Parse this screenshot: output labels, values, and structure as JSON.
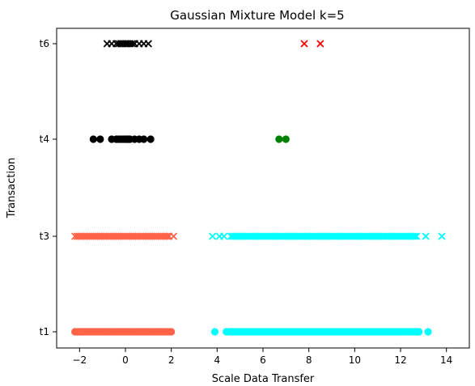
{
  "chart_data": {
    "type": "scatter",
    "title": "Gaussian Mixture Model k=5",
    "xlabel": "Scale Data Transfer",
    "ylabel": "Transaction",
    "xlim": [
      -3,
      15
    ],
    "x_ticks": [
      -2,
      0,
      2,
      4,
      6,
      8,
      10,
      12,
      14
    ],
    "categories": [
      "t1",
      "t3",
      "t4",
      "t6"
    ],
    "grid": false,
    "series": [
      {
        "category": "t6",
        "marker": "x",
        "color": "#000000",
        "x": [
          -0.8,
          -0.6,
          -0.4,
          -0.3,
          -0.2,
          -0.1,
          0.0,
          0.05,
          0.1,
          0.2,
          0.3,
          0.4,
          0.6,
          0.8,
          1.0
        ]
      },
      {
        "category": "t6",
        "marker": "x",
        "color": "#ff0000",
        "x": [
          7.8,
          8.5
        ]
      },
      {
        "category": "t4",
        "marker": "o",
        "color": "#000000",
        "x": [
          -1.4,
          -1.1,
          -0.6,
          -0.4,
          -0.3,
          -0.2,
          -0.1,
          0.0,
          0.05,
          0.1,
          0.15,
          0.2,
          0.4,
          0.6,
          0.8,
          1.1
        ]
      },
      {
        "category": "t4",
        "marker": "o",
        "color": "#008000",
        "x": [
          6.7,
          7.0
        ]
      },
      {
        "category": "t3",
        "marker": "x",
        "color": "#ff6347",
        "range": [
          -2.1,
          1.9
        ],
        "extra_x": [
          -2.2,
          2.1
        ]
      },
      {
        "category": "t3",
        "marker": "x",
        "color": "#00ffff",
        "range": [
          4.6,
          12.7
        ],
        "extra_x": [
          3.8,
          4.1,
          4.3,
          13.1,
          13.8
        ]
      },
      {
        "category": "t1",
        "marker": "o",
        "color": "#ff6347",
        "range": [
          -2.1,
          2.0
        ],
        "extra_x": [
          -2.2,
          -1.9
        ]
      },
      {
        "category": "t1",
        "marker": "o",
        "color": "#00ffff",
        "range": [
          4.4,
          12.8
        ],
        "extra_x": [
          3.9,
          13.2
        ]
      }
    ]
  }
}
